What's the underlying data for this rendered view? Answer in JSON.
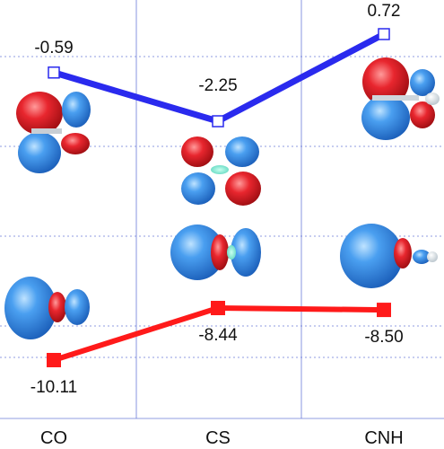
{
  "chart_data": {
    "type": "line",
    "categories": [
      "CO",
      "CS",
      "CNH"
    ],
    "series": [
      {
        "values": [
          -0.59,
          -2.25,
          0.72
        ],
        "labels": [
          "-0.59",
          "-2.25",
          "0.72"
        ],
        "color": "#2a2aee",
        "marker": "open-square"
      },
      {
        "values": [
          -10.11,
          -8.44,
          -8.5
        ],
        "labels": [
          "-10.11",
          "-8.44",
          "-8.50"
        ],
        "color": "#ff1a1a",
        "marker": "filled-square"
      }
    ],
    "orbital_colors": {
      "positive": "#3a8ee0",
      "negative": "#dd1c24"
    },
    "grid": true,
    "title": "",
    "xlabel": "",
    "ylabel": ""
  }
}
